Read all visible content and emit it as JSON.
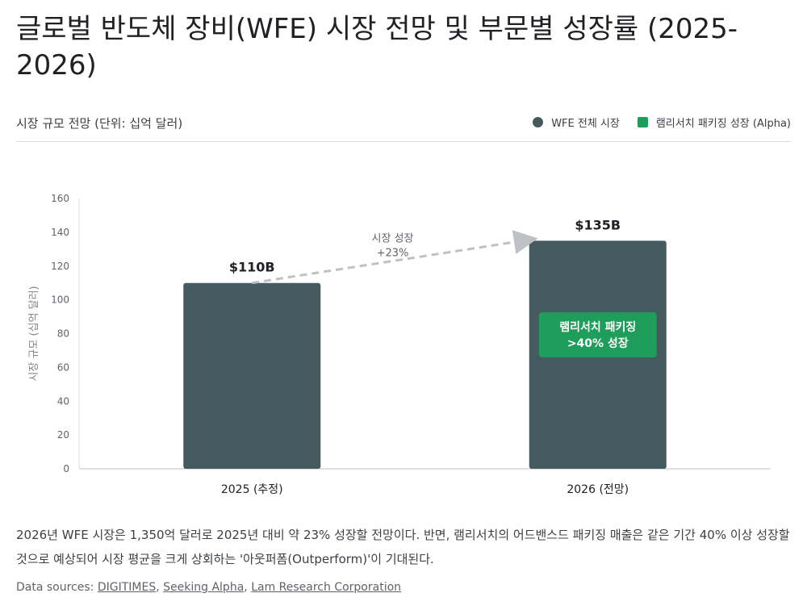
{
  "title": "글로벌 반도체 장비(WFE) 시장 전망 및 부문별 성장률 (2025-2026)",
  "subtitle": "시장 규모 전망 (단위: 십억 달러)",
  "legend": [
    {
      "label": "WFE 전체 시장",
      "color": "#455a5f",
      "shape": "circle"
    },
    {
      "label": "램리서치 패키징 성장 (Alpha)",
      "color": "#1e9e5a",
      "shape": "square"
    }
  ],
  "chart_data": {
    "type": "bar",
    "categories": [
      "2025 (추정)",
      "2026 (전망)"
    ],
    "values": [
      110,
      135
    ],
    "data_labels": [
      "$110B",
      "$135B"
    ],
    "ylabel": "시장 규모 (십억 달러)",
    "ylim": [
      0,
      160
    ],
    "yticks": [
      0,
      20,
      40,
      60,
      80,
      100,
      120,
      140,
      160
    ],
    "bar_color": "#455a5f",
    "grid": false,
    "legend_position": "top-right",
    "annotations": [
      {
        "type": "arrow",
        "from_category": 0,
        "to_category": 1,
        "lines": [
          "시장 성장",
          "+23%"
        ],
        "color": "#bdc1c6"
      },
      {
        "type": "badge",
        "category": 1,
        "lines": [
          "램리서치 패키징",
          ">40% 성장"
        ],
        "color": "#1e9e5a"
      }
    ]
  },
  "note": "2026년 WFE 시장은 1,350억 달러로 2025년 대비 약 23% 성장할 전망이다. 반면, 램리서치의 어드밴스드 패키징 매출은 같은 기간 40% 이상 성장할 것으로 예상되어 시장 평균을 크게 상회하는 '아웃퍼폼(Outperform)'이 기대된다.",
  "sources": {
    "prefix": "Data sources: ",
    "links": [
      "DIGITIMES",
      "Seeking Alpha",
      "Lam Research Corporation"
    ],
    "separator": ", "
  }
}
